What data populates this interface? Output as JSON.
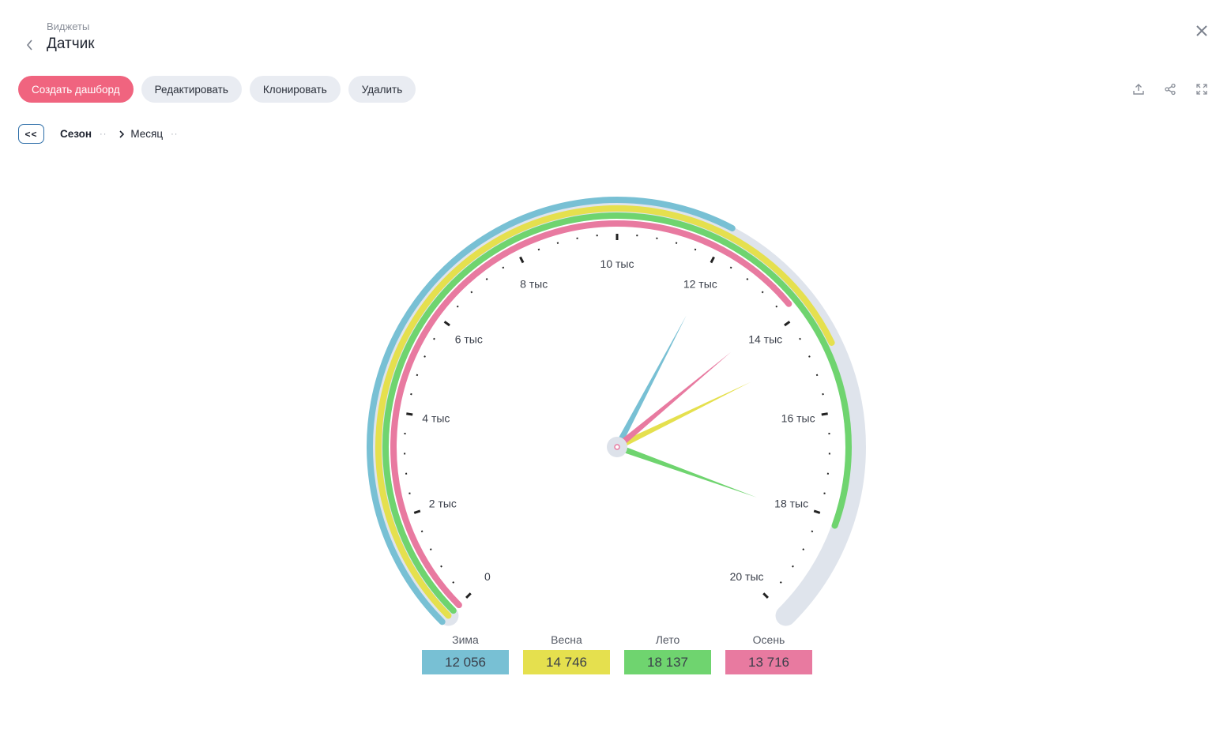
{
  "header": {
    "breadcrumb": "Виджеты",
    "title": "Датчик"
  },
  "toolbar": {
    "create_dashboard": "Создать дашборд",
    "edit": "Редактировать",
    "clone": "Клонировать",
    "delete": "Удалить"
  },
  "toolbar_icons": [
    "upload-icon",
    "share-icon",
    "fullscreen-icon"
  ],
  "drilldown": {
    "back_label": "<<",
    "levels": [
      "Сезон",
      "Месяц"
    ],
    "dots": "··"
  },
  "colors": {
    "accent": "#f0647f",
    "track": "#dfe4ec"
  },
  "chart_data": {
    "type": "gauge",
    "min": 0,
    "max": 20000,
    "tick_labels": [
      "0",
      "2 тыс",
      "4 тыс",
      "6 тыс",
      "8 тыс",
      "10 тыс",
      "12 тыс",
      "14 тыс",
      "16 тыс",
      "18 тыс",
      "20 тыс"
    ],
    "series": [
      {
        "name": "Зима",
        "value": 12056,
        "label": "12 056",
        "color": "#78c0d4"
      },
      {
        "name": "Весна",
        "value": 14746,
        "label": "14 746",
        "color": "#e5e04e"
      },
      {
        "name": "Лето",
        "value": 18137,
        "label": "18 137",
        "color": "#6fd46f"
      },
      {
        "name": "Осень",
        "value": 13716,
        "label": "13 716",
        "color": "#e87aa0"
      }
    ]
  }
}
